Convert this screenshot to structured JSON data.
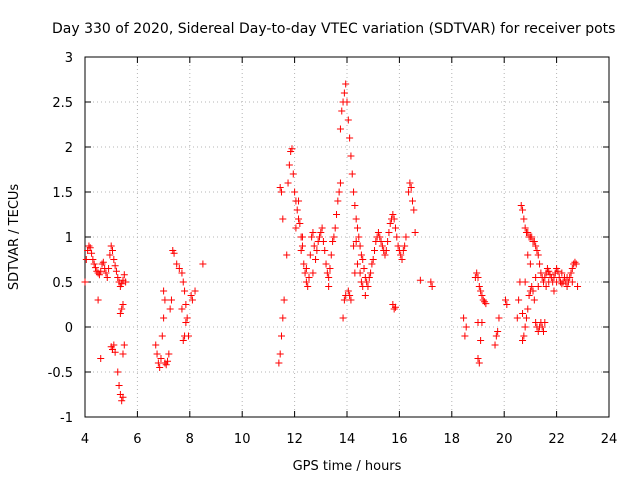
{
  "chart_data": {
    "type": "scatter",
    "title": "Day 330 of 2020, Sidereal Day-to-day VTEC variation (SDTVAR) for receiver pots",
    "xlabel": "GPS time / hours",
    "ylabel": "SDTVAR / TECUs",
    "xlim": [
      4,
      24
    ],
    "ylim": [
      -1,
      3
    ],
    "xticks": [
      "4",
      "6",
      "8",
      "10",
      "12",
      "14",
      "16",
      "18",
      "20",
      "22",
      "24"
    ],
    "yticks": [
      "-1",
      "-0.5",
      "0",
      "0.5",
      "1",
      "1.5",
      "2",
      "2.5",
      "3"
    ],
    "grid": true,
    "marker": "+",
    "color": "#ff0000",
    "series": [
      {
        "name": "SDTVAR",
        "points": [
          [
            4.0,
            0.5
          ],
          [
            4.05,
            0.75
          ],
          [
            4.1,
            0.85
          ],
          [
            4.15,
            0.9
          ],
          [
            4.2,
            0.88
          ],
          [
            4.25,
            0.82
          ],
          [
            4.3,
            0.75
          ],
          [
            4.35,
            0.7
          ],
          [
            4.4,
            0.66
          ],
          [
            4.45,
            0.62
          ],
          [
            4.5,
            0.6
          ],
          [
            4.55,
            0.58
          ],
          [
            4.6,
            0.62
          ],
          [
            4.65,
            0.7
          ],
          [
            4.7,
            0.72
          ],
          [
            4.75,
            0.65
          ],
          [
            4.8,
            0.6
          ],
          [
            4.85,
            0.55
          ],
          [
            4.9,
            0.65
          ],
          [
            4.95,
            0.8
          ],
          [
            5.0,
            0.9
          ],
          [
            5.05,
            0.85
          ],
          [
            5.1,
            0.75
          ],
          [
            5.15,
            0.68
          ],
          [
            5.2,
            0.62
          ],
          [
            5.25,
            0.55
          ],
          [
            5.3,
            0.5
          ],
          [
            5.35,
            0.45
          ],
          [
            5.4,
            0.48
          ],
          [
            5.45,
            0.52
          ],
          [
            5.5,
            0.58
          ],
          [
            5.55,
            0.5
          ],
          [
            4.5,
            0.3
          ],
          [
            4.6,
            -0.35
          ],
          [
            5.0,
            -0.22
          ],
          [
            5.05,
            -0.25
          ],
          [
            5.1,
            -0.2
          ],
          [
            5.15,
            -0.28
          ],
          [
            5.25,
            -0.5
          ],
          [
            5.3,
            -0.65
          ],
          [
            5.35,
            -0.75
          ],
          [
            5.4,
            -0.82
          ],
          [
            5.45,
            -0.78
          ],
          [
            5.35,
            0.15
          ],
          [
            5.4,
            0.2
          ],
          [
            5.45,
            0.25
          ],
          [
            5.5,
            -0.2
          ],
          [
            5.45,
            -0.3
          ],
          [
            6.7,
            -0.2
          ],
          [
            6.75,
            -0.3
          ],
          [
            6.8,
            -0.4
          ],
          [
            6.85,
            -0.45
          ],
          [
            6.9,
            -0.35
          ],
          [
            6.95,
            -0.1
          ],
          [
            7.0,
            0.1
          ],
          [
            7.05,
            0.3
          ],
          [
            7.0,
            0.4
          ],
          [
            7.05,
            -0.4
          ],
          [
            7.1,
            -0.42
          ],
          [
            7.15,
            -0.38
          ],
          [
            7.2,
            -0.3
          ],
          [
            7.25,
            0.2
          ],
          [
            7.3,
            0.3
          ],
          [
            7.35,
            0.85
          ],
          [
            7.4,
            0.82
          ],
          [
            7.5,
            0.7
          ],
          [
            7.6,
            0.65
          ],
          [
            7.7,
            0.6
          ],
          [
            7.75,
            0.5
          ],
          [
            7.8,
            0.4
          ],
          [
            7.85,
            0.25
          ],
          [
            7.9,
            0.1
          ],
          [
            7.95,
            -0.1
          ],
          [
            7.75,
            -0.15
          ],
          [
            7.8,
            -0.1
          ],
          [
            7.85,
            0.05
          ],
          [
            7.7,
            0.2
          ],
          [
            8.05,
            0.35
          ],
          [
            8.1,
            0.3
          ],
          [
            8.2,
            0.4
          ],
          [
            8.5,
            0.7
          ],
          [
            11.4,
            -0.4
          ],
          [
            11.45,
            -0.3
          ],
          [
            11.5,
            -0.1
          ],
          [
            11.55,
            0.1
          ],
          [
            11.6,
            0.3
          ],
          [
            11.55,
            1.2
          ],
          [
            11.5,
            1.5
          ],
          [
            11.45,
            1.55
          ],
          [
            11.7,
            0.8
          ],
          [
            11.75,
            1.6
          ],
          [
            11.8,
            1.8
          ],
          [
            11.85,
            1.95
          ],
          [
            11.9,
            1.98
          ],
          [
            11.95,
            1.7
          ],
          [
            12.0,
            1.5
          ],
          [
            12.05,
            1.4
          ],
          [
            12.1,
            1.3
          ],
          [
            12.15,
            1.2
          ],
          [
            12.2,
            1.15
          ],
          [
            12.25,
            1.0
          ],
          [
            12.3,
            0.9
          ],
          [
            12.35,
            0.7
          ],
          [
            12.4,
            0.6
          ],
          [
            12.45,
            0.5
          ],
          [
            12.5,
            0.45
          ],
          [
            12.55,
            0.55
          ],
          [
            12.6,
            0.8
          ],
          [
            12.65,
            1.0
          ],
          [
            12.7,
            1.05
          ],
          [
            12.75,
            0.9
          ],
          [
            12.8,
            0.75
          ],
          [
            12.85,
            0.85
          ],
          [
            12.9,
            0.95
          ],
          [
            12.95,
            1.0
          ],
          [
            13.0,
            1.05
          ],
          [
            13.05,
            1.1
          ],
          [
            13.1,
            0.95
          ],
          [
            13.15,
            0.85
          ],
          [
            13.2,
            0.7
          ],
          [
            13.25,
            0.6
          ],
          [
            13.3,
            0.55
          ],
          [
            13.35,
            0.65
          ],
          [
            13.4,
            0.8
          ],
          [
            13.45,
            0.95
          ],
          [
            13.5,
            1.0
          ],
          [
            13.55,
            1.1
          ],
          [
            13.6,
            1.25
          ],
          [
            13.65,
            1.4
          ],
          [
            13.7,
            1.5
          ],
          [
            13.75,
            1.6
          ],
          [
            13.75,
            2.2
          ],
          [
            13.8,
            2.4
          ],
          [
            13.85,
            2.5
          ],
          [
            13.9,
            2.6
          ],
          [
            13.95,
            2.7
          ],
          [
            14.0,
            2.5
          ],
          [
            14.05,
            2.3
          ],
          [
            14.1,
            2.1
          ],
          [
            14.15,
            1.9
          ],
          [
            14.2,
            1.7
          ],
          [
            14.25,
            1.5
          ],
          [
            14.3,
            1.35
          ],
          [
            14.35,
            1.2
          ],
          [
            14.4,
            1.1
          ],
          [
            14.45,
            1.0
          ],
          [
            14.5,
            0.9
          ],
          [
            14.55,
            0.8
          ],
          [
            14.6,
            0.75
          ],
          [
            14.65,
            0.65
          ],
          [
            14.7,
            0.55
          ],
          [
            14.75,
            0.5
          ],
          [
            14.8,
            0.45
          ],
          [
            14.85,
            0.55
          ],
          [
            14.9,
            0.6
          ],
          [
            14.95,
            0.7
          ],
          [
            15.0,
            0.75
          ],
          [
            15.05,
            0.85
          ],
          [
            15.1,
            0.95
          ],
          [
            15.15,
            1.0
          ],
          [
            15.2,
            1.05
          ],
          [
            15.25,
            1.0
          ],
          [
            15.3,
            0.95
          ],
          [
            15.35,
            0.9
          ],
          [
            15.4,
            0.85
          ],
          [
            15.45,
            0.8
          ],
          [
            15.5,
            0.85
          ],
          [
            15.55,
            0.95
          ],
          [
            15.6,
            1.05
          ],
          [
            15.65,
            1.15
          ],
          [
            15.7,
            1.2
          ],
          [
            15.75,
            1.25
          ],
          [
            15.8,
            1.2
          ],
          [
            15.85,
            1.1
          ],
          [
            15.9,
            1.0
          ],
          [
            15.95,
            0.9
          ],
          [
            16.0,
            0.85
          ],
          [
            16.05,
            0.8
          ],
          [
            16.1,
            0.75
          ],
          [
            16.15,
            0.85
          ],
          [
            16.2,
            0.9
          ],
          [
            16.25,
            1.0
          ],
          [
            16.35,
            1.5
          ],
          [
            16.4,
            1.6
          ],
          [
            16.45,
            1.55
          ],
          [
            16.5,
            1.4
          ],
          [
            16.55,
            1.3
          ],
          [
            16.6,
            1.05
          ],
          [
            16.8,
            0.52
          ],
          [
            17.2,
            0.5
          ],
          [
            17.25,
            0.45
          ],
          [
            13.85,
            0.1
          ],
          [
            13.9,
            0.3
          ],
          [
            13.95,
            0.35
          ],
          [
            14.05,
            0.4
          ],
          [
            14.1,
            0.35
          ],
          [
            14.15,
            0.3
          ],
          [
            14.3,
            0.6
          ],
          [
            14.4,
            0.7
          ],
          [
            14.5,
            0.6
          ],
          [
            14.55,
            0.5
          ],
          [
            14.6,
            0.45
          ],
          [
            14.7,
            0.35
          ],
          [
            15.75,
            0.25
          ],
          [
            15.8,
            0.2
          ],
          [
            15.85,
            0.22
          ],
          [
            12.15,
            1.4
          ],
          [
            12.3,
            1.0
          ],
          [
            12.05,
            1.1
          ],
          [
            12.25,
            0.85
          ],
          [
            12.45,
            0.65
          ],
          [
            12.7,
            0.6
          ],
          [
            13.3,
            0.45
          ],
          [
            14.25,
            0.9
          ],
          [
            14.35,
            0.95
          ],
          [
            18.45,
            0.1
          ],
          [
            18.5,
            -0.1
          ],
          [
            18.55,
            0.0
          ],
          [
            18.9,
            0.55
          ],
          [
            18.95,
            0.6
          ],
          [
            19.0,
            0.55
          ],
          [
            19.05,
            0.45
          ],
          [
            19.1,
            0.4
          ],
          [
            19.15,
            0.35
          ],
          [
            19.2,
            0.3
          ],
          [
            19.25,
            0.28
          ],
          [
            19.3,
            0.26
          ],
          [
            19.0,
            -0.35
          ],
          [
            19.05,
            -0.4
          ],
          [
            19.1,
            -0.15
          ],
          [
            19.15,
            0.05
          ],
          [
            19.0,
            0.05
          ],
          [
            19.65,
            -0.2
          ],
          [
            19.7,
            -0.1
          ],
          [
            19.75,
            -0.05
          ],
          [
            19.8,
            0.1
          ],
          [
            20.05,
            0.3
          ],
          [
            20.1,
            0.25
          ],
          [
            20.5,
            0.1
          ],
          [
            20.55,
            0.3
          ],
          [
            20.6,
            0.5
          ],
          [
            20.65,
            1.35
          ],
          [
            20.7,
            1.3
          ],
          [
            20.75,
            1.2
          ],
          [
            20.8,
            1.1
          ],
          [
            20.85,
            1.05
          ],
          [
            20.9,
            1.05
          ],
          [
            20.95,
            1.0
          ],
          [
            21.0,
            1.0
          ],
          [
            21.05,
            1.0
          ],
          [
            21.1,
            0.95
          ],
          [
            21.15,
            0.95
          ],
          [
            21.2,
            0.9
          ],
          [
            21.25,
            0.85
          ],
          [
            21.3,
            0.8
          ],
          [
            21.35,
            0.7
          ],
          [
            21.4,
            0.6
          ],
          [
            21.45,
            0.55
          ],
          [
            21.5,
            0.5
          ],
          [
            21.55,
            0.55
          ],
          [
            21.6,
            0.6
          ],
          [
            21.65,
            0.65
          ],
          [
            21.7,
            0.62
          ],
          [
            21.75,
            0.58
          ],
          [
            21.8,
            0.55
          ],
          [
            21.85,
            0.5
          ],
          [
            21.9,
            0.55
          ],
          [
            21.95,
            0.6
          ],
          [
            22.0,
            0.65
          ],
          [
            22.05,
            0.62
          ],
          [
            22.1,
            0.55
          ],
          [
            22.15,
            0.5
          ],
          [
            22.2,
            0.48
          ],
          [
            22.25,
            0.5
          ],
          [
            22.3,
            0.55
          ],
          [
            22.35,
            0.5
          ],
          [
            22.4,
            0.45
          ],
          [
            22.45,
            0.5
          ],
          [
            22.5,
            0.55
          ],
          [
            22.55,
            0.6
          ],
          [
            22.6,
            0.65
          ],
          [
            22.65,
            0.7
          ],
          [
            22.7,
            0.72
          ],
          [
            22.75,
            0.7
          ],
          [
            20.7,
            -0.15
          ],
          [
            20.75,
            -0.1
          ],
          [
            20.8,
            0.0
          ],
          [
            20.85,
            0.1
          ],
          [
            20.9,
            0.2
          ],
          [
            20.95,
            0.35
          ],
          [
            21.0,
            0.4
          ],
          [
            21.05,
            0.45
          ],
          [
            21.1,
            0.4
          ],
          [
            21.15,
            0.3
          ],
          [
            21.2,
            0.05
          ],
          [
            21.25,
            0.0
          ],
          [
            21.3,
            -0.05
          ],
          [
            21.35,
            0.0
          ],
          [
            21.4,
            0.05
          ],
          [
            21.45,
            0.0
          ],
          [
            21.5,
            -0.05
          ],
          [
            21.55,
            0.05
          ],
          [
            20.7,
            0.15
          ],
          [
            20.8,
            0.5
          ],
          [
            20.9,
            0.8
          ],
          [
            21.0,
            0.7
          ],
          [
            21.2,
            0.55
          ],
          [
            21.3,
            0.45
          ],
          [
            21.6,
            0.45
          ],
          [
            21.7,
            0.5
          ],
          [
            21.9,
            0.4
          ],
          [
            22.0,
            0.5
          ],
          [
            22.2,
            0.6
          ],
          [
            22.4,
            0.55
          ],
          [
            22.6,
            0.5
          ],
          [
            22.8,
            0.45
          ]
        ]
      }
    ]
  }
}
